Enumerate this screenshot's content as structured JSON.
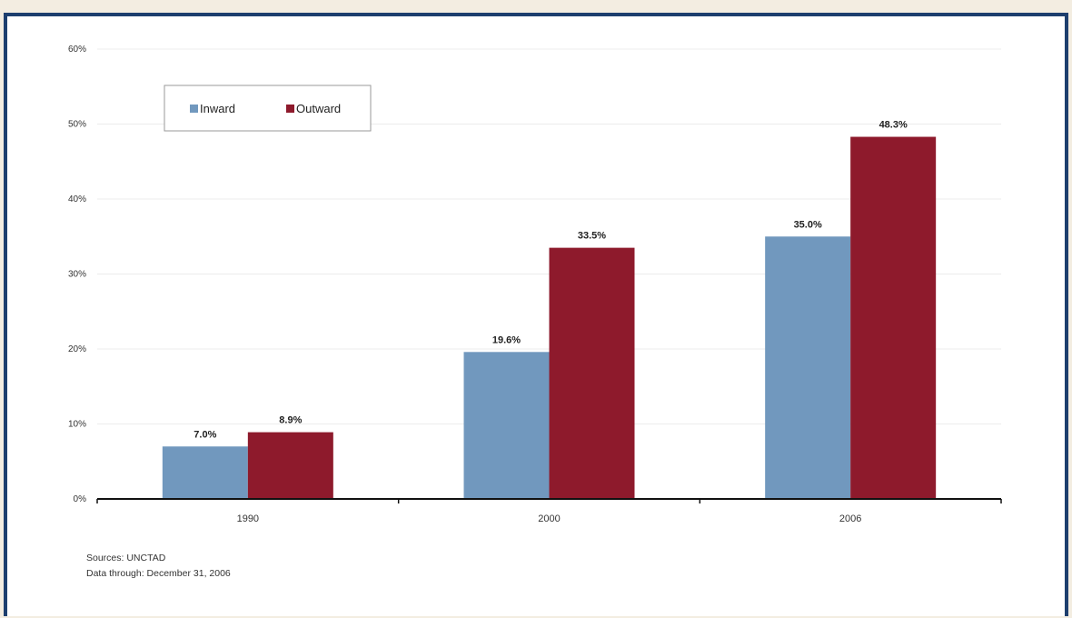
{
  "chart_data": {
    "type": "bar",
    "categories": [
      "1990",
      "2000",
      "2006"
    ],
    "series": [
      {
        "name": "Inward",
        "values": [
          7.0,
          19.6,
          35.0
        ],
        "labels": [
          "7.0%",
          "19.6%",
          "35.0%"
        ],
        "color": "#7198be"
      },
      {
        "name": "Outward",
        "values": [
          8.9,
          33.5,
          48.3
        ],
        "labels": [
          "8.9%",
          "33.5%",
          "48.3%"
        ],
        "color": "#8e1a2c"
      }
    ],
    "yticks": [
      "0%",
      "10%",
      "20%",
      "30%",
      "40%",
      "50%",
      "60%"
    ],
    "ylim": [
      0,
      60
    ],
    "grid": true,
    "legend": "top-left"
  },
  "notes": {
    "sources": "Sources: UNCTAD",
    "data_through": "Data through: December 31, 2006"
  },
  "colors": {
    "frame": "#1d3f6e",
    "background": "#f3ede1"
  }
}
